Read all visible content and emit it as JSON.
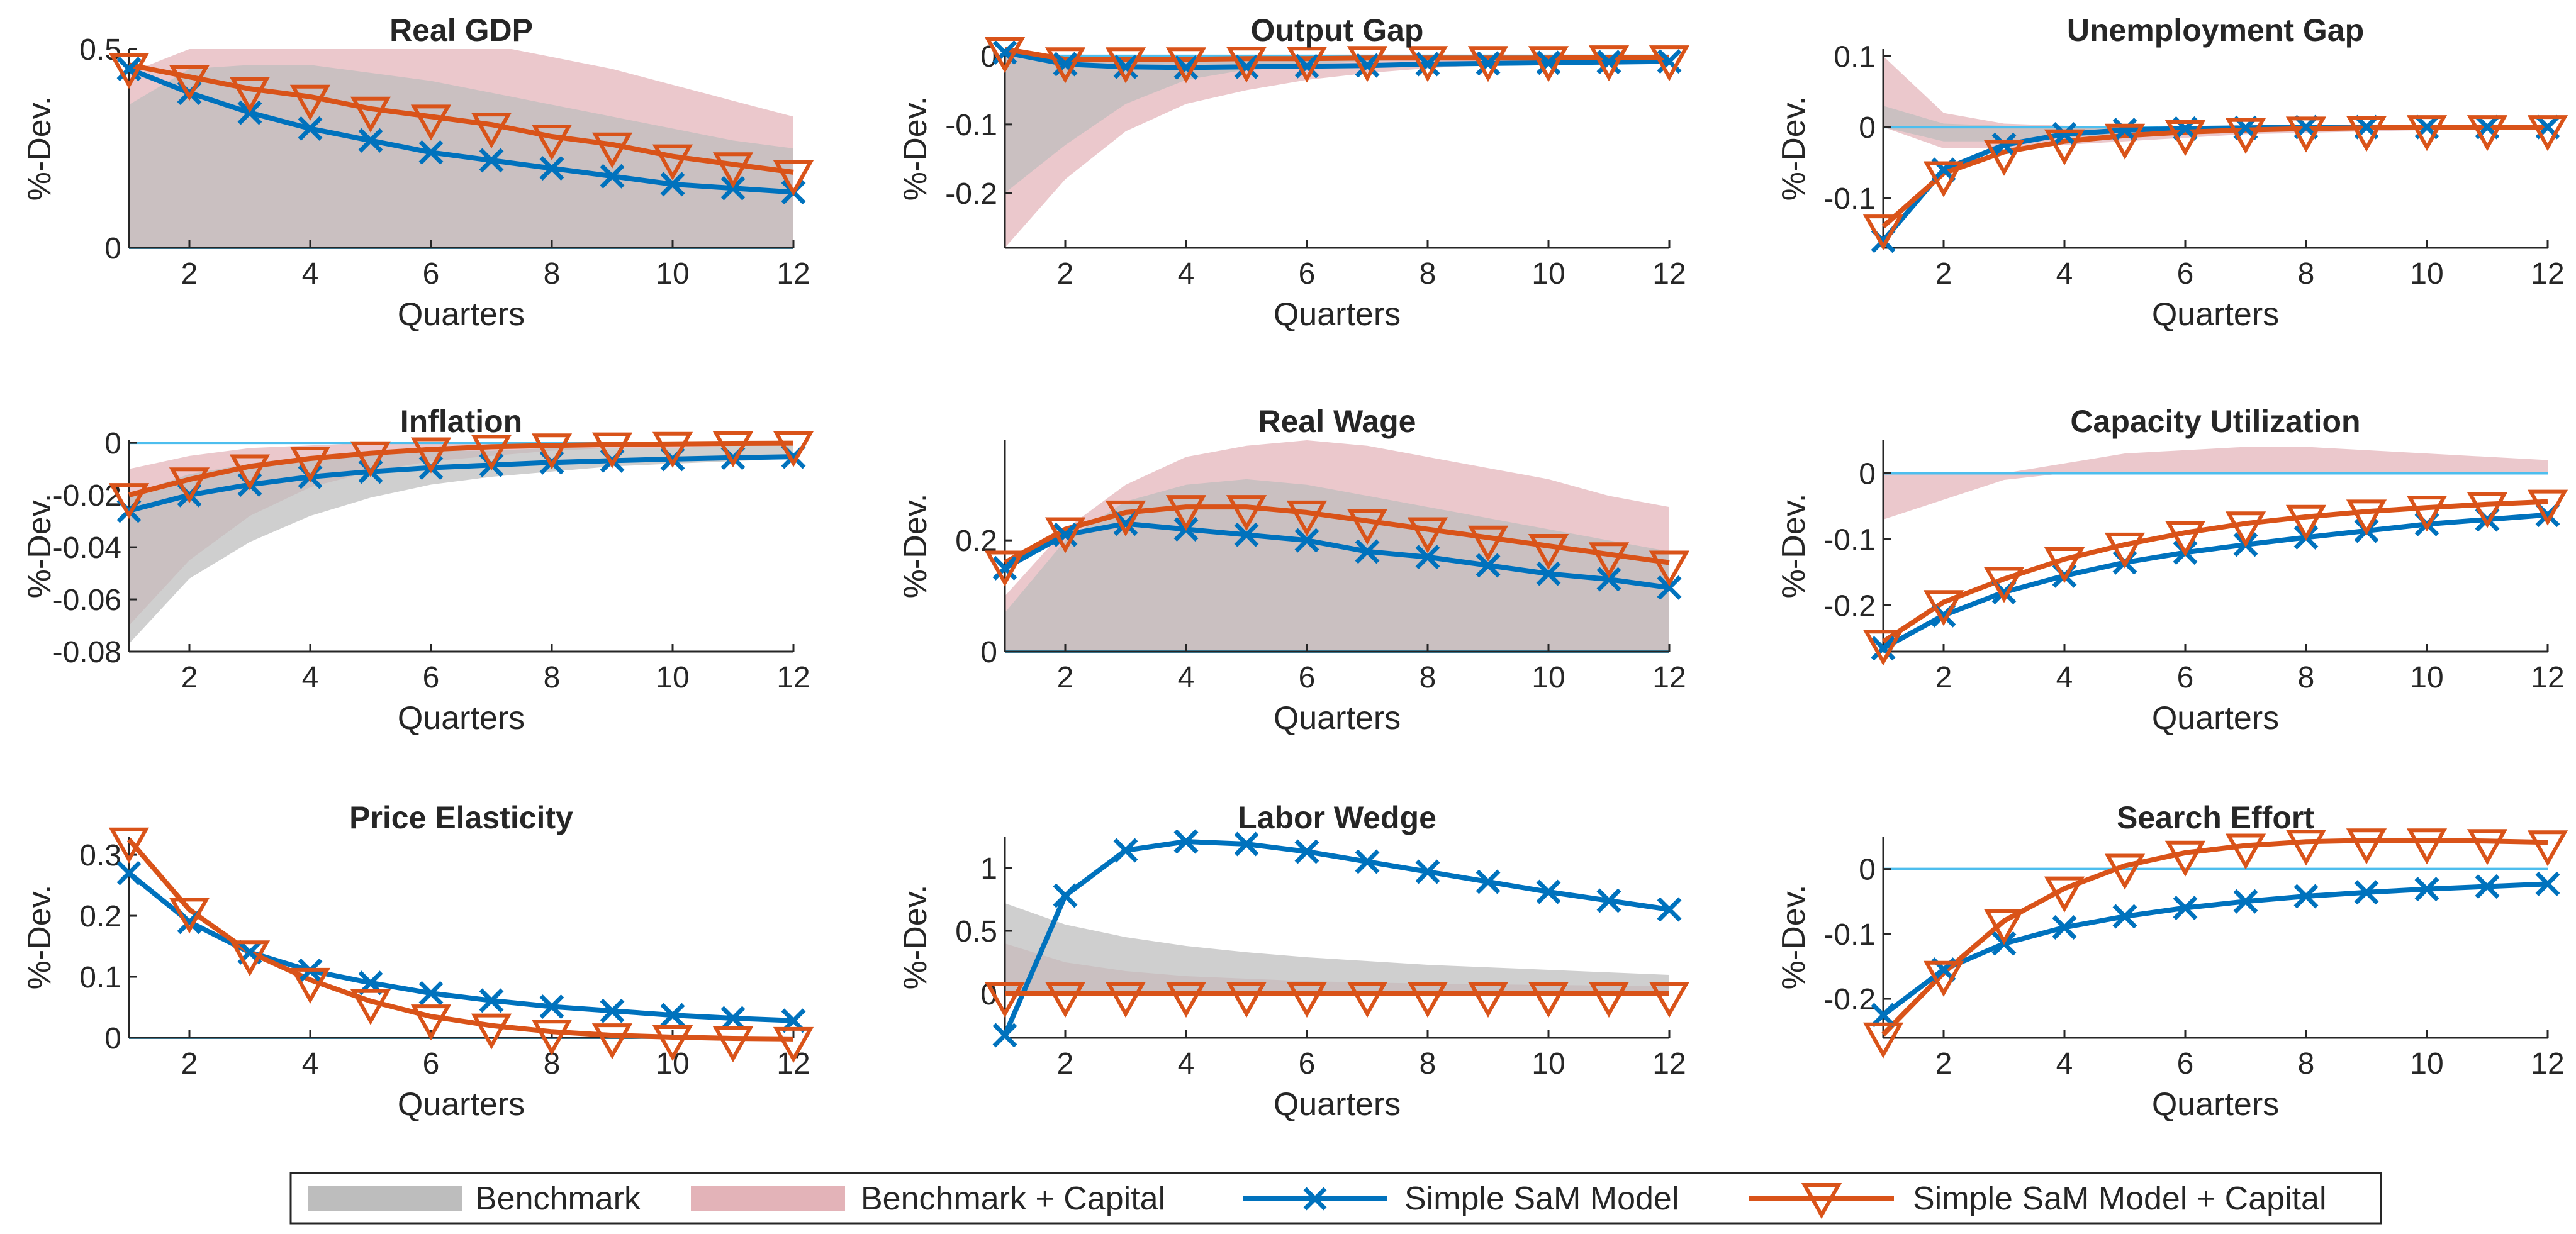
{
  "legend": {
    "position": "bottom-center",
    "entries": [
      "Benchmark",
      "Benchmark + Capital",
      "Simple SaM Model",
      "Simple SaM Model + Capital"
    ]
  },
  "colors": {
    "benchmark_band": "#bdbdbd",
    "capital_band": "#e3b3b8",
    "sam_line": "#0072bd",
    "sam_capital_line": "#d95319",
    "zero_line": "#4dbeee",
    "axis": "#262626"
  },
  "chart_data": [
    {
      "type": "line",
      "title": "Real GDP",
      "xlabel": "Quarters",
      "ylabel": "%-Dev.",
      "xlim": [
        1,
        12
      ],
      "ylim": [
        0,
        0.5
      ],
      "xticks": [
        2,
        4,
        6,
        8,
        10,
        12
      ],
      "yticks": [
        0,
        0.5
      ],
      "yticklabels": [
        "0",
        "0.5"
      ],
      "x": [
        1,
        2,
        3,
        4,
        5,
        6,
        7,
        8,
        9,
        10,
        11,
        12
      ],
      "benchmark_band": {
        "lower": [
          0,
          0,
          0,
          0,
          0,
          0,
          0,
          0,
          0,
          0,
          0,
          0
        ],
        "upper": [
          0.36,
          0.45,
          0.46,
          0.46,
          0.44,
          0.42,
          0.39,
          0.36,
          0.33,
          0.3,
          0.27,
          0.25
        ]
      },
      "capital_band": {
        "lower": [
          0,
          0,
          0,
          0,
          0,
          0,
          0,
          0,
          0,
          0,
          0,
          0
        ],
        "upper": [
          0.44,
          0.5,
          0.54,
          0.55,
          0.54,
          0.53,
          0.51,
          0.48,
          0.45,
          0.41,
          0.37,
          0.33
        ]
      },
      "series": [
        {
          "name": "Simple SaM Model",
          "values": [
            0.45,
            0.39,
            0.34,
            0.3,
            0.27,
            0.24,
            0.22,
            0.2,
            0.18,
            0.16,
            0.15,
            0.14
          ]
        },
        {
          "name": "Simple SaM Model + Capital",
          "values": [
            0.46,
            0.43,
            0.4,
            0.38,
            0.35,
            0.33,
            0.31,
            0.28,
            0.26,
            0.23,
            0.21,
            0.19
          ]
        }
      ]
    },
    {
      "type": "line",
      "title": "Output Gap",
      "xlabel": "Quarters",
      "ylabel": "%-Dev.",
      "xlim": [
        1,
        12
      ],
      "ylim": [
        -0.28,
        0.01
      ],
      "xticks": [
        2,
        4,
        6,
        8,
        10,
        12
      ],
      "yticks": [
        -0.2,
        -0.1,
        0
      ],
      "yticklabels": [
        "-0.2",
        "-0.1",
        "0"
      ],
      "x": [
        1,
        2,
        3,
        4,
        5,
        6,
        7,
        8,
        9,
        10,
        11,
        12
      ],
      "benchmark_band": {
        "lower": [
          -0.2,
          -0.13,
          -0.07,
          -0.035,
          -0.02,
          -0.012,
          -0.008,
          -0.005,
          -0.003,
          -0.002,
          -0.001,
          0
        ],
        "upper": [
          0,
          0,
          0,
          0,
          0,
          0,
          0,
          0,
          0,
          0,
          0,
          0
        ]
      },
      "capital_band": {
        "lower": [
          -0.28,
          -0.18,
          -0.11,
          -0.07,
          -0.05,
          -0.035,
          -0.025,
          -0.018,
          -0.013,
          -0.01,
          -0.008,
          -0.006
        ],
        "upper": [
          0,
          0,
          0,
          0,
          0,
          0,
          0,
          0,
          0,
          0,
          0,
          0
        ]
      },
      "series": [
        {
          "name": "Simple SaM Model",
          "values": [
            0.005,
            -0.012,
            -0.016,
            -0.017,
            -0.016,
            -0.015,
            -0.014,
            -0.012,
            -0.011,
            -0.01,
            -0.009,
            -0.008
          ]
        },
        {
          "name": "Simple SaM Model + Capital",
          "values": [
            0.01,
            -0.005,
            -0.005,
            -0.005,
            -0.004,
            -0.004,
            -0.003,
            -0.003,
            -0.003,
            -0.003,
            -0.002,
            -0.002
          ]
        }
      ]
    },
    {
      "type": "line",
      "title": "Unemployment Gap",
      "xlabel": "Quarters",
      "ylabel": "%-Dev.",
      "xlim": [
        1,
        12
      ],
      "ylim": [
        -0.17,
        0.11
      ],
      "xticks": [
        2,
        4,
        6,
        8,
        10,
        12
      ],
      "yticks": [
        -0.1,
        0,
        0.1
      ],
      "yticklabels": [
        "-0.1",
        "0",
        "0.1"
      ],
      "x": [
        1,
        2,
        3,
        4,
        5,
        6,
        7,
        8,
        9,
        10,
        11,
        12
      ],
      "benchmark_band": {
        "lower": [
          0,
          -0.02,
          -0.02,
          -0.015,
          -0.01,
          -0.007,
          -0.005,
          -0.003,
          -0.002,
          -0.001,
          -0.001,
          0
        ],
        "upper": [
          0.03,
          0.005,
          0.002,
          0.001,
          0.001,
          0,
          0,
          0,
          0,
          0,
          0,
          0
        ]
      },
      "capital_band": {
        "lower": [
          0,
          -0.03,
          -0.03,
          -0.025,
          -0.02,
          -0.015,
          -0.01,
          -0.008,
          -0.006,
          -0.004,
          -0.003,
          -0.002
        ],
        "upper": [
          0.1,
          0.02,
          0.005,
          0.002,
          0.001,
          0,
          0,
          0,
          0,
          0,
          0,
          0
        ]
      },
      "series": [
        {
          "name": "Simple SaM Model",
          "values": [
            -0.16,
            -0.06,
            -0.025,
            -0.01,
            -0.004,
            -0.002,
            -0.001,
            0,
            0,
            0,
            0,
            0
          ]
        },
        {
          "name": "Simple SaM Model + Capital",
          "values": [
            -0.14,
            -0.065,
            -0.035,
            -0.02,
            -0.012,
            -0.007,
            -0.004,
            -0.002,
            -0.001,
            0,
            0,
            0
          ]
        }
      ]
    },
    {
      "type": "line",
      "title": "Inflation",
      "xlabel": "Quarters",
      "ylabel": "%-Dev.",
      "xlim": [
        1,
        12
      ],
      "ylim": [
        -0.08,
        0.001
      ],
      "xticks": [
        2,
        4,
        6,
        8,
        10,
        12
      ],
      "yticks": [
        -0.08,
        -0.06,
        -0.04,
        -0.02,
        0
      ],
      "yticklabels": [
        "-0.08",
        "-0.06",
        "-0.04",
        "-0.02",
        "0"
      ],
      "x": [
        1,
        2,
        3,
        4,
        5,
        6,
        7,
        8,
        9,
        10,
        11,
        12
      ],
      "benchmark_band": {
        "lower": [
          -0.077,
          -0.052,
          -0.038,
          -0.028,
          -0.021,
          -0.016,
          -0.013,
          -0.011,
          -0.009,
          -0.008,
          -0.007,
          -0.006
        ],
        "upper": [
          -0.02,
          -0.012,
          -0.008,
          -0.005,
          -0.004,
          -0.003,
          -0.003,
          -0.002,
          -0.002,
          -0.002,
          -0.001,
          -0.001
        ]
      },
      "capital_band": {
        "lower": [
          -0.07,
          -0.045,
          -0.028,
          -0.017,
          -0.011,
          -0.007,
          -0.005,
          -0.003,
          -0.002,
          -0.002,
          -0.001,
          -0.001
        ],
        "upper": [
          -0.01,
          -0.005,
          -0.002,
          -0.001,
          0,
          0,
          0,
          0,
          0,
          0,
          0,
          0
        ]
      },
      "series": [
        {
          "name": "Simple SaM Model",
          "values": [
            -0.026,
            -0.02,
            -0.016,
            -0.013,
            -0.011,
            -0.0095,
            -0.0085,
            -0.0075,
            -0.0068,
            -0.0062,
            -0.0057,
            -0.0053
          ]
        },
        {
          "name": "Simple SaM Model + Capital",
          "values": [
            -0.02,
            -0.014,
            -0.009,
            -0.006,
            -0.004,
            -0.0025,
            -0.0015,
            -0.001,
            -0.0006,
            -0.0004,
            -0.0002,
            -0.0001
          ]
        }
      ]
    },
    {
      "type": "line",
      "title": "Real Wage",
      "xlabel": "Quarters",
      "ylabel": "%-Dev.",
      "xlim": [
        1,
        12
      ],
      "ylim": [
        0,
        0.38
      ],
      "xticks": [
        2,
        4,
        6,
        8,
        10,
        12
      ],
      "yticks": [
        0,
        0.2
      ],
      "yticklabels": [
        "0",
        "0.2"
      ],
      "x": [
        1,
        2,
        3,
        4,
        5,
        6,
        7,
        8,
        9,
        10,
        11,
        12
      ],
      "benchmark_band": {
        "lower": [
          0,
          0,
          0,
          0,
          0,
          0,
          0,
          0,
          0,
          0,
          0,
          0
        ],
        "upper": [
          0.07,
          0.2,
          0.27,
          0.3,
          0.31,
          0.3,
          0.28,
          0.26,
          0.24,
          0.22,
          0.2,
          0.18
        ]
      },
      "capital_band": {
        "lower": [
          0,
          0,
          0,
          0,
          0,
          0,
          0,
          0,
          0,
          0,
          0,
          0
        ],
        "upper": [
          0.1,
          0.22,
          0.3,
          0.35,
          0.37,
          0.38,
          0.37,
          0.35,
          0.33,
          0.31,
          0.28,
          0.26
        ]
      },
      "series": [
        {
          "name": "Simple SaM Model",
          "values": [
            0.15,
            0.21,
            0.23,
            0.22,
            0.21,
            0.2,
            0.18,
            0.17,
            0.155,
            0.14,
            0.13,
            0.115
          ]
        },
        {
          "name": "Simple SaM Model + Capital",
          "values": [
            0.16,
            0.22,
            0.25,
            0.26,
            0.26,
            0.25,
            0.235,
            0.22,
            0.205,
            0.19,
            0.175,
            0.16
          ]
        }
      ]
    },
    {
      "type": "line",
      "title": "Capacity Utilization",
      "xlabel": "Quarters",
      "ylabel": "%-Dev.",
      "xlim": [
        1,
        12
      ],
      "ylim": [
        -0.27,
        0.05
      ],
      "xticks": [
        2,
        4,
        6,
        8,
        10,
        12
      ],
      "yticks": [
        -0.2,
        -0.1,
        0
      ],
      "yticklabels": [
        "-0.2",
        "-0.1",
        "0"
      ],
      "x": [
        1,
        2,
        3,
        4,
        5,
        6,
        7,
        8,
        9,
        10,
        11,
        12
      ],
      "benchmark_band": {
        "lower": [
          0,
          0,
          0,
          0,
          0,
          0,
          0,
          0,
          0,
          0,
          0,
          0
        ],
        "upper": [
          0,
          0,
          0,
          0,
          0,
          0,
          0,
          0,
          0,
          0,
          0,
          0
        ]
      },
      "capital_band": {
        "lower": [
          -0.07,
          -0.04,
          -0.01,
          0,
          0,
          0,
          0,
          0,
          0,
          0,
          0,
          0
        ],
        "upper": [
          0,
          0,
          0,
          0.015,
          0.03,
          0.035,
          0.04,
          0.04,
          0.035,
          0.03,
          0.025,
          0.02
        ]
      },
      "series": [
        {
          "name": "Simple SaM Model",
          "values": [
            -0.265,
            -0.215,
            -0.18,
            -0.155,
            -0.135,
            -0.12,
            -0.108,
            -0.097,
            -0.087,
            -0.077,
            -0.07,
            -0.063
          ]
        },
        {
          "name": "Simple SaM Model + Capital",
          "values": [
            -0.255,
            -0.195,
            -0.16,
            -0.13,
            -0.108,
            -0.09,
            -0.076,
            -0.066,
            -0.058,
            -0.052,
            -0.047,
            -0.043
          ]
        }
      ]
    },
    {
      "type": "line",
      "title": "Price Elasticity",
      "xlabel": "Quarters",
      "ylabel": "%-Dev.",
      "xlim": [
        1,
        12
      ],
      "ylim": [
        0,
        0.33
      ],
      "xticks": [
        2,
        4,
        6,
        8,
        10,
        12
      ],
      "yticks": [
        0,
        0.1,
        0.2,
        0.3
      ],
      "yticklabels": [
        "0",
        "0.1",
        "0.2",
        "0.3"
      ],
      "x": [
        1,
        2,
        3,
        4,
        5,
        6,
        7,
        8,
        9,
        10,
        11,
        12
      ],
      "benchmark_band": {
        "lower": [
          0,
          0,
          0,
          0,
          0,
          0,
          0,
          0,
          0,
          0,
          0,
          0
        ],
        "upper": [
          0,
          0,
          0,
          0,
          0,
          0,
          0,
          0,
          0,
          0,
          0,
          0
        ]
      },
      "capital_band": {
        "lower": [
          0,
          0,
          0,
          0,
          0,
          0,
          0,
          0,
          0,
          0,
          0,
          0
        ],
        "upper": [
          0,
          0,
          0,
          0,
          0,
          0,
          0,
          0,
          0,
          0,
          0,
          0
        ]
      },
      "series": [
        {
          "name": "Simple SaM Model",
          "values": [
            0.27,
            0.19,
            0.14,
            0.11,
            0.09,
            0.073,
            0.061,
            0.051,
            0.044,
            0.037,
            0.032,
            0.028
          ]
        },
        {
          "name": "Simple SaM Model + Capital",
          "values": [
            0.325,
            0.21,
            0.14,
            0.095,
            0.06,
            0.035,
            0.02,
            0.01,
            0.004,
            0.001,
            -0.001,
            -0.002
          ]
        }
      ]
    },
    {
      "type": "line",
      "title": "Labor Wedge",
      "xlabel": "Quarters",
      "ylabel": "%-Dev.",
      "xlim": [
        1,
        12
      ],
      "ylim": [
        -0.35,
        1.25
      ],
      "xticks": [
        2,
        4,
        6,
        8,
        10,
        12
      ],
      "yticks": [
        0,
        0.5,
        1
      ],
      "yticklabels": [
        "0",
        "0.5",
        "1"
      ],
      "x": [
        1,
        2,
        3,
        4,
        5,
        6,
        7,
        8,
        9,
        10,
        11,
        12
      ],
      "benchmark_band": {
        "lower": [
          0,
          0,
          0,
          0,
          0,
          0,
          0,
          0,
          0,
          0,
          0,
          0
        ],
        "upper": [
          0.72,
          0.55,
          0.45,
          0.38,
          0.33,
          0.29,
          0.26,
          0.23,
          0.21,
          0.19,
          0.17,
          0.15
        ]
      },
      "capital_band": {
        "lower": [
          0,
          0,
          0,
          0,
          0,
          0,
          0,
          0,
          0,
          0,
          0,
          0
        ],
        "upper": [
          0.4,
          0.25,
          0.18,
          0.14,
          0.12,
          0.1,
          0.09,
          0.08,
          0.075,
          0.07,
          0.065,
          0.06
        ]
      },
      "series": [
        {
          "name": "Simple SaM Model",
          "values": [
            -0.33,
            0.78,
            1.14,
            1.21,
            1.19,
            1.13,
            1.05,
            0.97,
            0.89,
            0.81,
            0.74,
            0.67
          ]
        },
        {
          "name": "Simple SaM Model + Capital",
          "values": [
            0,
            0,
            0,
            0,
            0,
            0,
            0,
            0,
            0,
            0,
            0,
            0
          ]
        }
      ]
    },
    {
      "type": "line",
      "title": "Search Effort",
      "xlabel": "Quarters",
      "ylabel": "%-Dev.",
      "xlim": [
        1,
        12
      ],
      "ylim": [
        -0.26,
        0.05
      ],
      "xticks": [
        2,
        4,
        6,
        8,
        10,
        12
      ],
      "yticks": [
        -0.2,
        -0.1,
        0
      ],
      "yticklabels": [
        "-0.2",
        "-0.1",
        "0"
      ],
      "x": [
        1,
        2,
        3,
        4,
        5,
        6,
        7,
        8,
        9,
        10,
        11,
        12
      ],
      "benchmark_band": {
        "lower": [
          0,
          0,
          0,
          0,
          0,
          0,
          0,
          0,
          0,
          0,
          0,
          0
        ],
        "upper": [
          0,
          0,
          0,
          0,
          0,
          0,
          0,
          0,
          0,
          0,
          0,
          0
        ]
      },
      "capital_band": {
        "lower": [
          0,
          0,
          0,
          0,
          0,
          0,
          0,
          0,
          0,
          0,
          0,
          0
        ],
        "upper": [
          0,
          0,
          0,
          0,
          0,
          0,
          0,
          0,
          0,
          0,
          0,
          0
        ]
      },
      "series": [
        {
          "name": "Simple SaM Model",
          "values": [
            -0.225,
            -0.155,
            -0.115,
            -0.09,
            -0.073,
            -0.06,
            -0.05,
            -0.042,
            -0.036,
            -0.031,
            -0.027,
            -0.023
          ]
        },
        {
          "name": "Simple SaM Model + Capital",
          "values": [
            -0.255,
            -0.16,
            -0.08,
            -0.03,
            0.005,
            0.025,
            0.036,
            0.042,
            0.044,
            0.044,
            0.043,
            0.041
          ]
        }
      ]
    }
  ]
}
